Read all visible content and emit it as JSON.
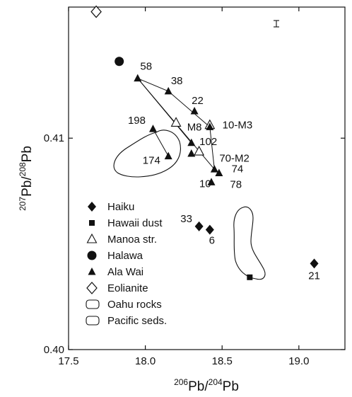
{
  "chart_data": {
    "type": "scatter",
    "xlabel": {
      "sup": "206",
      "main": "Pb/",
      "sup2": "204",
      "main2": "Pb"
    },
    "ylabel": {
      "sup": "207",
      "main": "Pb/",
      "sup2": "208",
      "main2": "Pb"
    },
    "xlim": [
      17.5,
      19.3
    ],
    "ylim": [
      0.4,
      0.4162
    ],
    "x_ticks": [
      {
        "value": 17.5,
        "label": "17.5"
      },
      {
        "value": 18.0,
        "label": "18.0"
      },
      {
        "value": 18.5,
        "label": "18.5"
      },
      {
        "value": 19.0,
        "label": "19.0"
      }
    ],
    "y_ticks": [
      {
        "value": 0.41,
        "label": "0.41"
      },
      {
        "value": 0.4,
        "label": "0.40"
      }
    ],
    "grid": false,
    "legend_position": "bottom-left",
    "legend": [
      {
        "key": "haiku",
        "label": "Haiku"
      },
      {
        "key": "dust",
        "label": "Hawaii dust"
      },
      {
        "key": "manoa",
        "label": "Manoa str."
      },
      {
        "key": "halawa",
        "label": "Halawa"
      },
      {
        "key": "alawai",
        "label": "Ala Wai"
      },
      {
        "key": "eolianite",
        "label": "Eolianite"
      },
      {
        "key": "oahu",
        "label": "Oahu rocks"
      },
      {
        "key": "pacific",
        "label": "Pacific seds."
      }
    ],
    "series": [
      {
        "key": "haiku",
        "marker": "diamond-filled",
        "points": [
          {
            "x": 18.35,
            "y": 0.40583,
            "label": "33"
          },
          {
            "x": 18.42,
            "y": 0.40567,
            "label": "6"
          },
          {
            "x": 19.1,
            "y": 0.40407,
            "label": "21"
          }
        ]
      },
      {
        "key": "dust",
        "marker": "square-filled",
        "points": [
          {
            "x": 18.68,
            "y": 0.40342,
            "label": ""
          }
        ]
      },
      {
        "key": "manoa",
        "marker": "triangle-open",
        "points": [
          {
            "x": 18.2,
            "y": 0.41073,
            "label": ""
          },
          {
            "x": 18.42,
            "y": 0.41062,
            "label": ""
          },
          {
            "x": 18.35,
            "y": 0.40937,
            "label": ""
          }
        ]
      },
      {
        "key": "halawa",
        "marker": "circle-filled",
        "points": [
          {
            "x": 17.83,
            "y": 0.41363,
            "label": ""
          }
        ]
      },
      {
        "key": "alawai",
        "marker": "triangle-filled",
        "points": [
          {
            "x": 17.95,
            "y": 0.41283,
            "label": "58"
          },
          {
            "x": 18.15,
            "y": 0.41222,
            "label": "38"
          },
          {
            "x": 18.32,
            "y": 0.41128,
            "label": ""
          },
          {
            "x": 18.42,
            "y": 0.41053,
            "label": ""
          },
          {
            "x": 18.05,
            "y": 0.41044,
            "label": "198"
          },
          {
            "x": 18.15,
            "y": 0.40915,
            "label": ""
          },
          {
            "x": 18.3,
            "y": 0.40978,
            "label": ""
          },
          {
            "x": 18.3,
            "y": 0.40927,
            "label": ""
          },
          {
            "x": 18.45,
            "y": 0.40853,
            "label": ""
          },
          {
            "x": 18.48,
            "y": 0.40835,
            "label": ""
          },
          {
            "x": 18.43,
            "y": 0.40792,
            "label": ""
          }
        ]
      },
      {
        "key": "eolianite",
        "marker": "diamond-open",
        "points": [
          {
            "x": 17.68,
            "y": 0.41598,
            "label": ""
          }
        ]
      }
    ],
    "annotations": [
      {
        "text": "22",
        "x": 18.34,
        "y": 0.41178
      },
      {
        "text": "M8",
        "x": 18.32,
        "y": 0.41053
      },
      {
        "text": "10-M3",
        "x": 18.6,
        "y": 0.41062
      },
      {
        "text": "102",
        "x": 18.41,
        "y": 0.40984
      },
      {
        "text": "174",
        "x": 18.04,
        "y": 0.40895
      },
      {
        "text": "70-M2",
        "x": 18.58,
        "y": 0.40905
      },
      {
        "text": "74",
        "x": 18.6,
        "y": 0.40855
      },
      {
        "text": "10",
        "x": 18.39,
        "y": 0.40785
      },
      {
        "text": "78",
        "x": 18.59,
        "y": 0.40782
      }
    ]
  }
}
